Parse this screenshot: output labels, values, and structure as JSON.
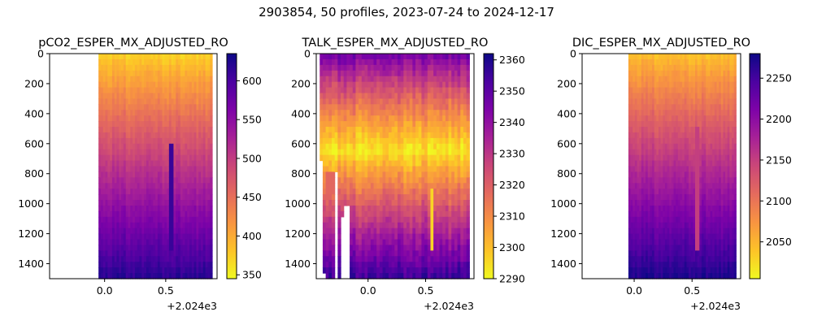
{
  "figure": {
    "suptitle": "2903854, 50 profiles, 2023-07-24 to 2024-12-17"
  },
  "chart_data": [
    {
      "type": "heatmap",
      "title": "pCO2_ESPER_MX_ADJUSTED_RO",
      "xlabel": "",
      "ylabel": "",
      "x_offset_label": "+2.024e3",
      "x_offset": 2024,
      "x_tick_labels": [
        "0.0",
        "0.5"
      ],
      "x_ticks": [
        0.0,
        0.5
      ],
      "xlim": [
        -0.45,
        0.92
      ],
      "data_x_range": [
        -0.05,
        0.88
      ],
      "ylim": [
        1500,
        0
      ],
      "y_tick_labels": [
        "0",
        "200",
        "400",
        "600",
        "800",
        "1000",
        "1200",
        "1400"
      ],
      "y_ticks": [
        0,
        200,
        400,
        600,
        800,
        1000,
        1200,
        1400
      ],
      "colormap": "plasma_r",
      "colorbar_range": [
        345,
        635
      ],
      "colorbar_tick_labels": [
        "350",
        "400",
        "450",
        "500",
        "550",
        "600"
      ],
      "colorbar_ticks": [
        350,
        400,
        450,
        500,
        550,
        600
      ],
      "profile": {
        "surface": 370,
        "bottom": 620,
        "shape": 0.9
      },
      "bands": [
        {
          "x_from": 0.53,
          "x_to": 0.56,
          "y_from": 600,
          "y_to": 1300,
          "value": 610
        }
      ]
    },
    {
      "type": "heatmap",
      "title": "TALK_ESPER_MX_ADJUSTED_RO",
      "xlabel": "",
      "ylabel": "",
      "x_offset_label": "+2.024e3",
      "x_offset": 2024,
      "x_tick_labels": [
        "0.0",
        "0.5"
      ],
      "x_ticks": [
        0.0,
        0.5
      ],
      "xlim": [
        -0.45,
        0.92
      ],
      "data_x_range": [
        -0.42,
        0.88
      ],
      "ylim": [
        1500,
        0
      ],
      "y_tick_labels": [
        "0",
        "200",
        "400",
        "600",
        "800",
        "1000",
        "1200",
        "1400"
      ],
      "y_ticks": [
        0,
        200,
        400,
        600,
        800,
        1000,
        1200,
        1400
      ],
      "colormap": "plasma_r",
      "colorbar_range": [
        2290,
        2362
      ],
      "colorbar_tick_labels": [
        "2290",
        "2300",
        "2310",
        "2320",
        "2330",
        "2340",
        "2350",
        "2360"
      ],
      "colorbar_ticks": [
        2290,
        2300,
        2310,
        2320,
        2330,
        2340,
        2350,
        2360
      ],
      "profile": {
        "surface": 2348,
        "minimum": 2293,
        "minimum_depth": 650,
        "bottom": 2356
      },
      "bands": [
        {
          "x_from": 0.53,
          "x_to": 0.56,
          "y_from": 900,
          "y_to": 1300,
          "value": 2296
        },
        {
          "x_from": -0.36,
          "x_to": -0.3,
          "y_from": 800,
          "y_to": 950,
          "value": 2318
        }
      ],
      "gaps": [
        {
          "x_from": -0.42,
          "x_to": -0.385,
          "y_from": 700,
          "y_to": 1500
        },
        {
          "x_from": -0.385,
          "x_to": -0.36,
          "y_from": 1450,
          "y_to": 1500
        },
        {
          "x_from": -0.3,
          "x_to": -0.255,
          "y_from": 800,
          "y_to": 1500
        },
        {
          "x_from": -0.24,
          "x_to": -0.2,
          "y_from": 1100,
          "y_to": 1500
        },
        {
          "x_from": -0.2,
          "x_to": -0.17,
          "y_from": 1000,
          "y_to": 1500
        }
      ]
    },
    {
      "type": "heatmap",
      "title": "DIC_ESPER_MX_ADJUSTED_RO",
      "xlabel": "",
      "ylabel": "",
      "x_offset_label": "+2.024e3",
      "x_offset": 2024,
      "x_tick_labels": [
        "0.0",
        "0.5"
      ],
      "x_ticks": [
        0.0,
        0.5
      ],
      "xlim": [
        -0.45,
        0.92
      ],
      "data_x_range": [
        -0.05,
        0.88
      ],
      "ylim": [
        1500,
        0
      ],
      "y_tick_labels": [
        "0",
        "200",
        "400",
        "600",
        "800",
        "1000",
        "1200",
        "1400"
      ],
      "y_ticks": [
        0,
        200,
        400,
        600,
        800,
        1000,
        1200,
        1400
      ],
      "colormap": "plasma_r",
      "colorbar_range": [
        2005,
        2280
      ],
      "colorbar_tick_labels": [
        "2050",
        "2100",
        "2150",
        "2200",
        "2250"
      ],
      "colorbar_ticks": [
        2050,
        2100,
        2150,
        2200,
        2250
      ],
      "profile": {
        "surface": 2040,
        "bottom": 2272,
        "shape": 0.9
      },
      "bands": [
        {
          "x_from": 0.53,
          "x_to": 0.56,
          "y_from": 500,
          "y_to": 1300,
          "value": 2150
        }
      ]
    }
  ]
}
